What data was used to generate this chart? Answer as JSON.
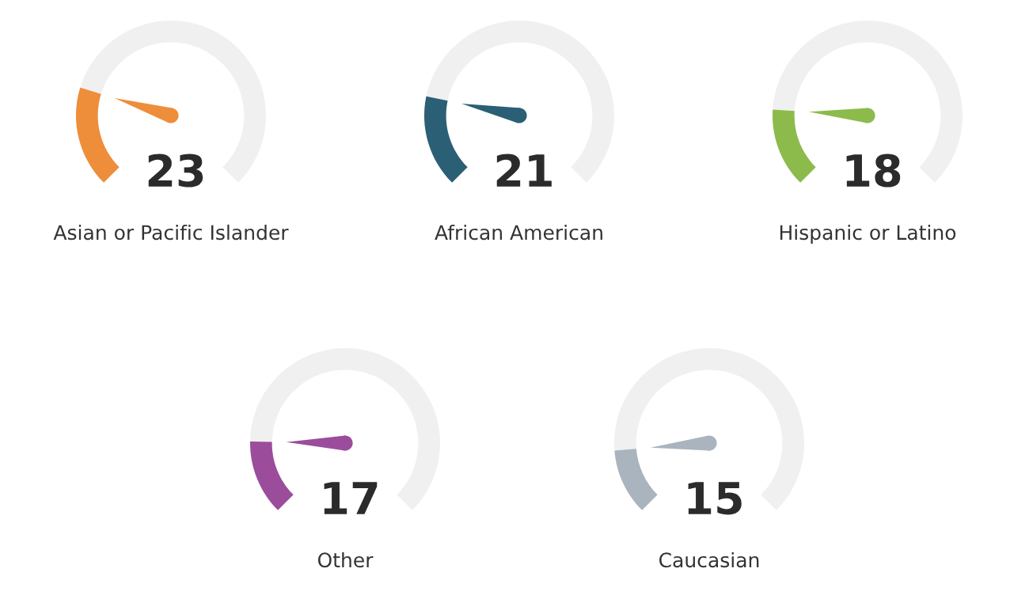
{
  "chart_data": [
    {
      "type": "other",
      "categories": [
        "Asian or Pacific Islander"
      ],
      "values": [
        23
      ],
      "color": "#ee8d3a",
      "data_labels": true
    },
    {
      "type": "other",
      "categories": [
        "African American"
      ],
      "values": [
        21
      ],
      "color": "#2b5f75",
      "data_labels": true
    },
    {
      "type": "other",
      "categories": [
        "Hispanic or Latino"
      ],
      "values": [
        18
      ],
      "color": "#8cbb4c",
      "data_labels": true
    },
    {
      "type": "other",
      "categories": [
        "Other"
      ],
      "values": [
        17
      ],
      "color": "#9b4d9b",
      "data_labels": true
    },
    {
      "type": "other",
      "categories": [
        "Caucasian"
      ],
      "values": [
        15
      ],
      "color": "#a9b4be",
      "data_labels": true
    }
  ]
}
